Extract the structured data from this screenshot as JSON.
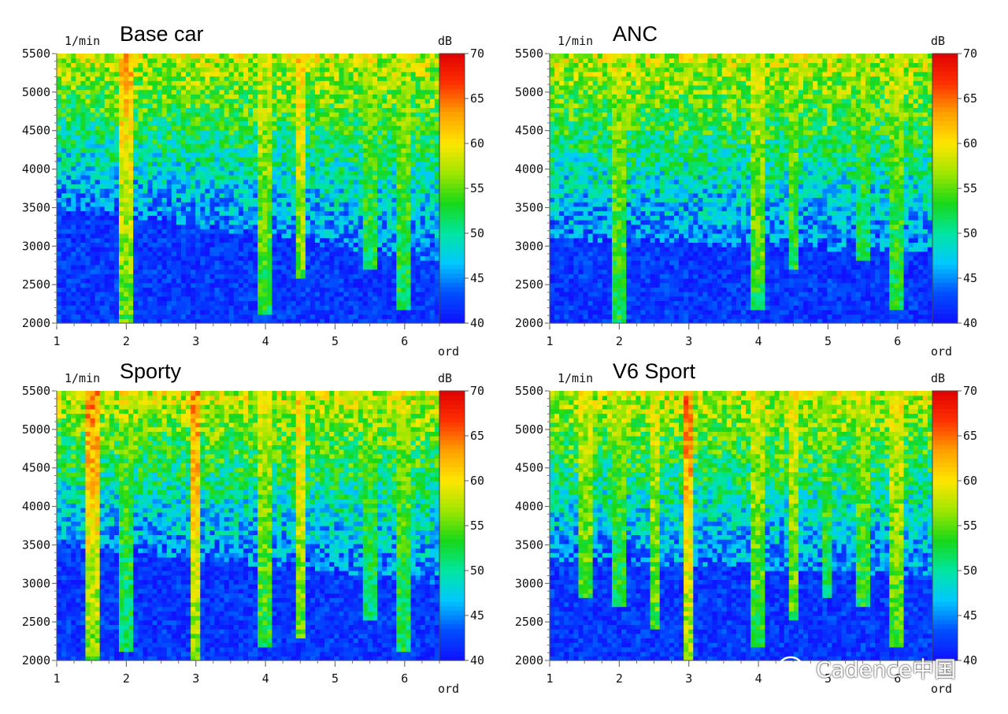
{
  "colormap": [
    "#1010ff",
    "#0050ff",
    "#00c8ff",
    "#00e6a0",
    "#18d818",
    "#a0e600",
    "#ffe600",
    "#ffa000",
    "#ff3000",
    "#e00000"
  ],
  "watermark": {
    "icon": "wechat-icon",
    "text": "Cadence中国"
  },
  "chart_data": [
    {
      "type": "heatmap",
      "title": "Base car",
      "ylabel": "1/min",
      "xlabel": "ord",
      "colorbar_label": "dB",
      "xlim": [
        1,
        6.5
      ],
      "ylim": [
        2000,
        5500
      ],
      "clim": [
        40,
        70
      ],
      "x_ticks": [
        "1",
        "2",
        "3",
        "4",
        "5",
        "6"
      ],
      "y_ticks": [
        "2000",
        "2500",
        "3000",
        "3500",
        "4000",
        "4500",
        "5000",
        "5500"
      ],
      "colorbar_ticks": [
        "40",
        "45",
        "50",
        "55",
        "60",
        "65",
        "70"
      ],
      "noise_floor_rpm": [
        [
          1,
          3500
        ],
        [
          6.5,
          2800
        ]
      ],
      "order_lines": [
        {
          "order": 2,
          "start_rpm": 2000,
          "amplitude": 14
        },
        {
          "order": 4,
          "start_rpm": 2100,
          "amplitude": 10
        },
        {
          "order": 4.5,
          "start_rpm": 2600,
          "amplitude": 13
        },
        {
          "order": 5.5,
          "start_rpm": 2700,
          "amplitude": 7
        },
        {
          "order": 6,
          "start_rpm": 2200,
          "amplitude": 8
        }
      ]
    },
    {
      "type": "heatmap",
      "title": "ANC",
      "ylabel": "1/min",
      "xlabel": "ord",
      "colorbar_label": "dB",
      "xlim": [
        1,
        6.5
      ],
      "ylim": [
        2000,
        5500
      ],
      "clim": [
        40,
        70
      ],
      "x_ticks": [
        "1",
        "2",
        "3",
        "4",
        "5",
        "6"
      ],
      "y_ticks": [
        "2000",
        "2500",
        "3000",
        "3500",
        "4000",
        "4500",
        "5000",
        "5500"
      ],
      "colorbar_ticks": [
        "40",
        "45",
        "50",
        "55",
        "60",
        "65",
        "70"
      ],
      "noise_floor_rpm": [
        [
          1,
          3100
        ],
        [
          6.5,
          2900
        ]
      ],
      "order_lines": [
        {
          "order": 2,
          "start_rpm": 2000,
          "amplitude": 9
        },
        {
          "order": 4,
          "start_rpm": 2200,
          "amplitude": 10
        },
        {
          "order": 4.5,
          "start_rpm": 2700,
          "amplitude": 8
        },
        {
          "order": 5.5,
          "start_rpm": 2800,
          "amplitude": 6
        },
        {
          "order": 6,
          "start_rpm": 2200,
          "amplitude": 8
        }
      ]
    },
    {
      "type": "heatmap",
      "title": "Sporty",
      "ylabel": "1/min",
      "xlabel": "ord",
      "colorbar_label": "dB",
      "xlim": [
        1,
        6.5
      ],
      "ylim": [
        2000,
        5500
      ],
      "clim": [
        40,
        70
      ],
      "x_ticks": [
        "1",
        "2",
        "3",
        "4",
        "5",
        "6"
      ],
      "y_ticks": [
        "2000",
        "2500",
        "3000",
        "3500",
        "4000",
        "4500",
        "5000",
        "5500"
      ],
      "colorbar_ticks": [
        "40",
        "45",
        "50",
        "55",
        "60",
        "65",
        "70"
      ],
      "noise_floor_rpm": [
        [
          1,
          3500
        ],
        [
          6.5,
          3000
        ]
      ],
      "order_lines": [
        {
          "order": 1.5,
          "start_rpm": 2000,
          "amplitude": 16
        },
        {
          "order": 2,
          "start_rpm": 2100,
          "amplitude": 7
        },
        {
          "order": 3,
          "start_rpm": 2000,
          "amplitude": 16
        },
        {
          "order": 4,
          "start_rpm": 2200,
          "amplitude": 10
        },
        {
          "order": 4.5,
          "start_rpm": 2300,
          "amplitude": 13
        },
        {
          "order": 5.5,
          "start_rpm": 2500,
          "amplitude": 6
        },
        {
          "order": 6,
          "start_rpm": 2100,
          "amplitude": 8
        }
      ]
    },
    {
      "type": "heatmap",
      "title": "V6 Sport",
      "ylabel": "1/min",
      "xlabel": "ord",
      "colorbar_label": "dB",
      "xlim": [
        1,
        6.5
      ],
      "ylim": [
        2000,
        5500
      ],
      "clim": [
        40,
        70
      ],
      "x_ticks": [
        "1",
        "2",
        "3",
        "4",
        "5",
        "6"
      ],
      "y_ticks": [
        "2000",
        "2500",
        "3000",
        "3500",
        "4000",
        "4500",
        "5000",
        "5500"
      ],
      "colorbar_ticks": [
        "40",
        "45",
        "50",
        "55",
        "60",
        "65",
        "70"
      ],
      "noise_floor_rpm": [
        [
          1,
          3300
        ],
        [
          6.5,
          3100
        ]
      ],
      "order_lines": [
        {
          "order": 1.5,
          "start_rpm": 2800,
          "amplitude": 10
        },
        {
          "order": 2,
          "start_rpm": 2700,
          "amplitude": 7
        },
        {
          "order": 2.5,
          "start_rpm": 2400,
          "amplitude": 11
        },
        {
          "order": 3,
          "start_rpm": 2000,
          "amplitude": 17
        },
        {
          "order": 4,
          "start_rpm": 2200,
          "amplitude": 10
        },
        {
          "order": 4.5,
          "start_rpm": 2500,
          "amplitude": 11
        },
        {
          "order": 5,
          "start_rpm": 2800,
          "amplitude": 7
        },
        {
          "order": 5.5,
          "start_rpm": 2700,
          "amplitude": 8
        },
        {
          "order": 6,
          "start_rpm": 2200,
          "amplitude": 11
        }
      ]
    }
  ]
}
